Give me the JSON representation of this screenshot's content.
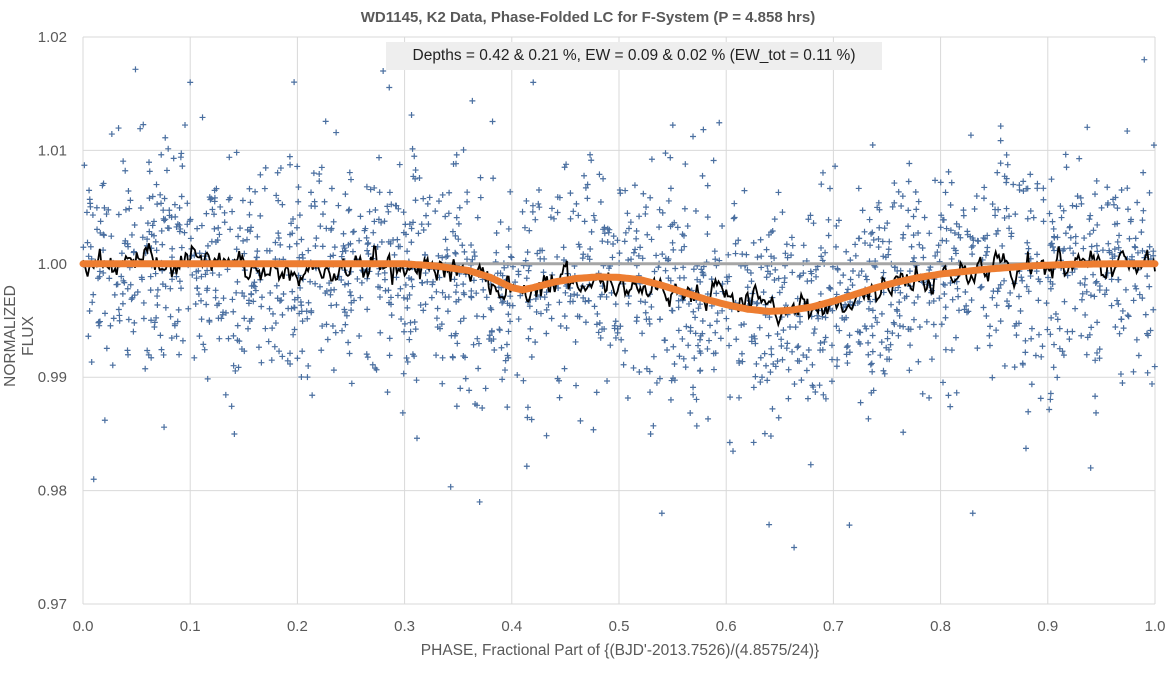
{
  "chart_data": {
    "type": "scatter",
    "title": "WD1145, K2 Data, Phase-Folded LC for F-System (P = 4.858 hrs)",
    "annotation": "Depths = 0.42 & 0.21 %, EW = 0.09 & 0.02 % (EW_tot = 0.11 %)",
    "xlabel": "PHASE, Fractional Part of {(BJD'-2013.7526)/(4.8575/24)}",
    "ylabel": "NORMALIZED FLUX",
    "xlim": [
      0.0,
      1.0
    ],
    "ylim": [
      0.97,
      1.02
    ],
    "xticks": [
      "0.0",
      "0.1",
      "0.2",
      "0.3",
      "0.4",
      "0.5",
      "0.6",
      "0.7",
      "0.8",
      "0.9",
      "1.0"
    ],
    "yticks": [
      "0.97",
      "0.98",
      "0.99",
      "1.00",
      "1.01",
      "1.02"
    ],
    "grid": true,
    "colors": {
      "data_points": "#4a6fa0",
      "running_average": "#000000",
      "model": "#ed7d31",
      "baseline": "#a6a6a6",
      "grid": "#d9d9d9"
    },
    "series": [
      {
        "role": "data_points",
        "marker": "+",
        "note_scatter": "approx. 2000 folded flux measurements centered near 1.000 with sigma ~0.005; visible extremes",
        "outliers": [
          {
            "x": 0.28,
            "y": 1.017
          },
          {
            "x": 0.1,
            "y": 1.016
          },
          {
            "x": 0.42,
            "y": 1.016
          },
          {
            "x": 0.99,
            "y": 1.018
          },
          {
            "x": 0.83,
            "y": 0.978
          },
          {
            "x": 0.64,
            "y": 0.977
          },
          {
            "x": 0.37,
            "y": 0.979
          },
          {
            "x": 0.54,
            "y": 0.978
          },
          {
            "x": 0.94,
            "y": 0.982
          },
          {
            "x": 0.01,
            "y": 0.981
          }
        ]
      },
      {
        "role": "model",
        "x": [
          0.0,
          0.3,
          0.33,
          0.36,
          0.38,
          0.4,
          0.41,
          0.42,
          0.44,
          0.46,
          0.48,
          0.5,
          0.52,
          0.54,
          0.56,
          0.58,
          0.6,
          0.62,
          0.64,
          0.66,
          0.68,
          0.7,
          0.72,
          0.74,
          0.76,
          0.78,
          0.8,
          0.84,
          0.88,
          0.92,
          0.96,
          1.0
        ],
        "y": [
          1.0,
          1.0,
          0.9998,
          0.9994,
          0.9988,
          0.9979,
          0.9977,
          0.9979,
          0.9984,
          0.9987,
          0.99885,
          0.9988,
          0.9986,
          0.9981,
          0.9975,
          0.9969,
          0.9964,
          0.996,
          0.9958,
          0.9959,
          0.9962,
          0.9967,
          0.9973,
          0.9979,
          0.9984,
          0.9988,
          0.9991,
          0.9995,
          0.9998,
          0.99995,
          1.0,
          1.0
        ]
      },
      {
        "role": "running_average",
        "x": [
          0.0,
          0.05,
          0.1,
          0.15,
          0.2,
          0.25,
          0.3,
          0.35,
          0.4,
          0.45,
          0.5,
          0.55,
          0.6,
          0.65,
          0.7,
          0.75,
          0.8,
          0.85,
          0.9,
          0.95,
          1.0
        ],
        "y": [
          1.0003,
          1.0,
          1.0002,
          0.9998,
          0.9989,
          0.9998,
          0.9999,
          0.9996,
          0.9978,
          0.9986,
          0.9983,
          0.9978,
          0.997,
          0.9958,
          0.9963,
          0.998,
          0.9991,
          0.9997,
          0.9997,
          1.0,
          1.0004
        ]
      },
      {
        "role": "baseline",
        "x": [
          0.0,
          1.0
        ],
        "y": [
          1.0,
          1.0
        ]
      }
    ]
  }
}
